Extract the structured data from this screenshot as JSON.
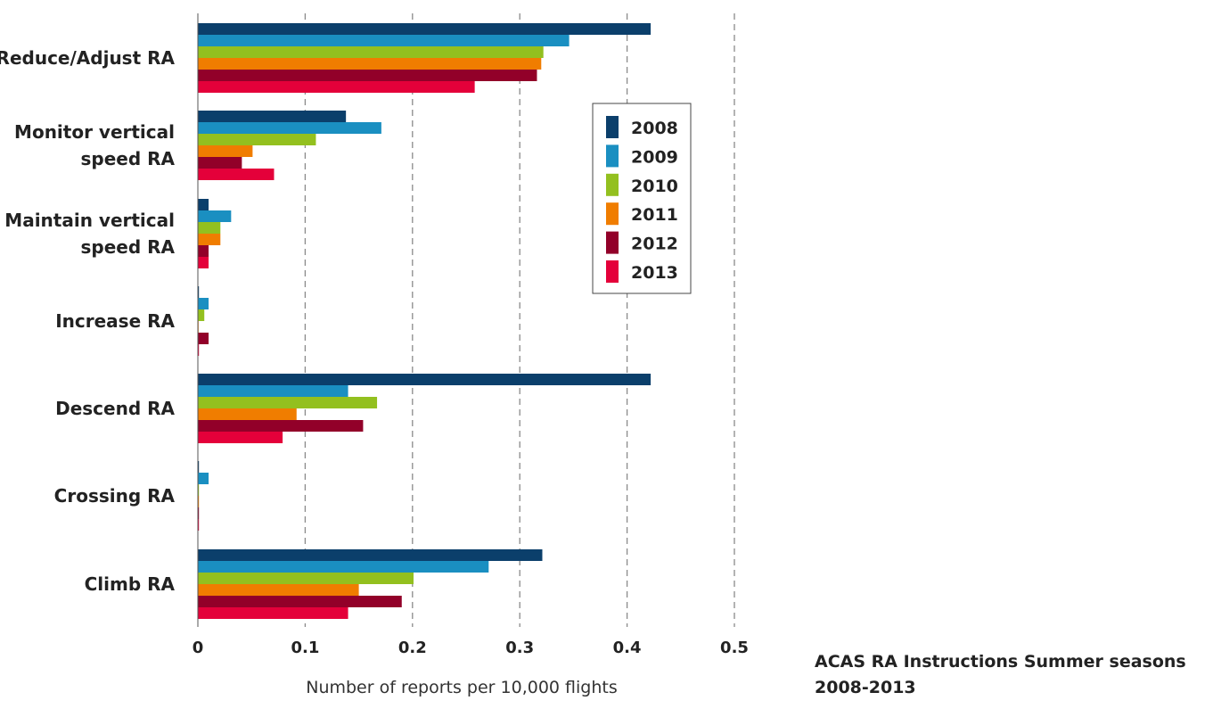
{
  "chart_data": {
    "type": "bar",
    "orientation": "horizontal",
    "title_lines": [
      "ACAS RA Instructions Summer seasons",
      "2008-2013"
    ],
    "xlabel": "Number of reports per 10,000 flights",
    "ylabel": "",
    "xlim": [
      0,
      0.5
    ],
    "x_ticks": [
      "0",
      "0.1",
      "0.2",
      "0.3",
      "0.4",
      "0.5"
    ],
    "x_tick_values": [
      0,
      0.1,
      0.2,
      0.3,
      0.4,
      0.5
    ],
    "grid": "vertical dashed",
    "legend_position": "right",
    "categories": [
      {
        "lines": [
          "Reduce/Adjust RA"
        ]
      },
      {
        "lines": [
          "Monitor vertical",
          "speed RA"
        ]
      },
      {
        "lines": [
          "Maintain vertical",
          "speed RA"
        ]
      },
      {
        "lines": [
          "Increase RA"
        ]
      },
      {
        "lines": [
          "Descend RA"
        ]
      },
      {
        "lines": [
          "Crossing RA"
        ]
      },
      {
        "lines": [
          "Climb RA"
        ]
      }
    ],
    "series": [
      {
        "name": "2008",
        "color": "#0b3f6b",
        "values": [
          0.422,
          0.138,
          0.01,
          0.001,
          0.422,
          0.001,
          0.321
        ]
      },
      {
        "name": "2009",
        "color": "#1a8fc1",
        "values": [
          0.346,
          0.171,
          0.031,
          0.01,
          0.14,
          0.01,
          0.271
        ]
      },
      {
        "name": "2010",
        "color": "#93c01f",
        "values": [
          0.322,
          0.11,
          0.021,
          0.006,
          0.167,
          0.001,
          0.201
        ]
      },
      {
        "name": "2011",
        "color": "#f07d00",
        "values": [
          0.32,
          0.051,
          0.021,
          0.0,
          0.092,
          0.001,
          0.15
        ]
      },
      {
        "name": "2012",
        "color": "#920029",
        "values": [
          0.316,
          0.041,
          0.01,
          0.01,
          0.154,
          0.001,
          0.19
        ]
      },
      {
        "name": "2013",
        "color": "#e4003a",
        "values": [
          0.258,
          0.071,
          0.01,
          0.001,
          0.079,
          0.001,
          0.14
        ]
      }
    ]
  }
}
